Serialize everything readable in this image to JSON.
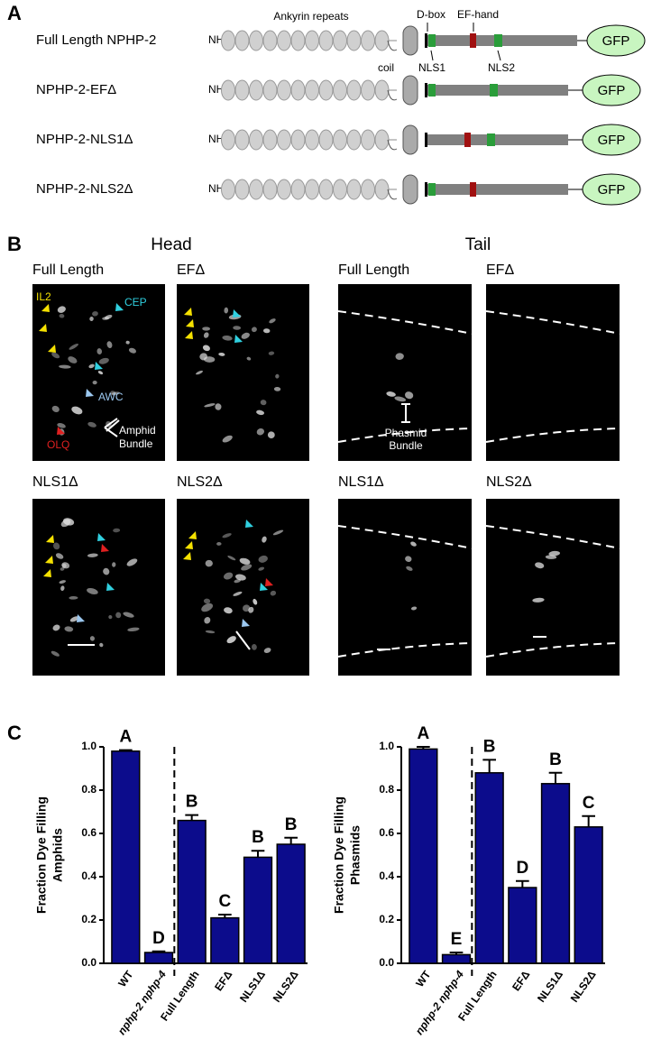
{
  "panel_a": {
    "label": "A",
    "ankyrin": "Ankyrin repeats",
    "dbox": "D-box",
    "efhand": "EF-hand",
    "coil": "coil",
    "nls1": "NLS1",
    "nls2": "NLS2",
    "constructs": [
      {
        "name": "Full Length NPHP-2",
        "nterm": "NH2",
        "tag": "GFP"
      },
      {
        "name": "NPHP-2-EFΔ",
        "nterm": "NH2",
        "tag": "GFP"
      },
      {
        "name": "NPHP-2-NLS1Δ",
        "nterm": "NH2",
        "tag": "GFP"
      },
      {
        "name": "NPHP-2-NLS2Δ",
        "nterm": "NH2",
        "tag": "GFP"
      }
    ]
  },
  "panel_b": {
    "label": "B",
    "head": {
      "title": "Head",
      "images": [
        "Full Length",
        "EFΔ",
        "NLS1Δ",
        "NLS2Δ"
      ]
    },
    "tail": {
      "title": "Tail",
      "images": [
        "Full Length",
        "EFΔ",
        "NLS1Δ",
        "NLS2Δ"
      ]
    },
    "annotations": {
      "il2": "IL2",
      "cep": "CEP",
      "awc": "AWC",
      "olq": "OLQ",
      "amphid": [
        "Amphid",
        "Bundle"
      ],
      "phasmid": [
        "Phasmid",
        "Bundle"
      ]
    },
    "scale": "5 µm"
  },
  "panel_c": {
    "label": "C"
  },
  "chart_data": [
    {
      "type": "bar",
      "ylabel": [
        "Fraction Dye Filling",
        "Amphids"
      ],
      "color": "#0c0c8c",
      "categories": [
        "WT",
        "nphp-2 nphp-4",
        "Full Length",
        "EFΔ",
        "NLS1Δ",
        "NLS2Δ"
      ],
      "values": [
        0.98,
        0.05,
        0.66,
        0.21,
        0.49,
        0.55
      ],
      "errors": [
        0.005,
        0.005,
        0.025,
        0.015,
        0.03,
        0.03
      ],
      "annotations": [
        "A",
        "D",
        "B",
        "C",
        "B",
        "B"
      ],
      "ylim": [
        0,
        1.0
      ],
      "yticks": [
        {
          "value": 0,
          "label": "0.0"
        },
        {
          "value": 0.2,
          "label": "0.2"
        },
        {
          "value": 0.4,
          "label": "0.4"
        },
        {
          "value": 0.6,
          "label": "0.6"
        },
        {
          "value": 0.8,
          "label": "0.8"
        },
        {
          "value": 1.0,
          "label": "1.0"
        }
      ]
    },
    {
      "type": "bar",
      "ylabel": [
        "Fraction Dye Filling",
        "Phasmids"
      ],
      "color": "#0c0c8c",
      "categories": [
        "WT",
        "nphp-2 nphp-4",
        "Full Length",
        "EFΔ",
        "NLS1Δ",
        "NLS2Δ"
      ],
      "values": [
        0.99,
        0.04,
        0.88,
        0.35,
        0.83,
        0.63
      ],
      "errors": [
        0.01,
        0.01,
        0.06,
        0.03,
        0.05,
        0.05
      ],
      "annotations": [
        "A",
        "E",
        "B",
        "D",
        "B",
        "C"
      ],
      "ylim": [
        0,
        1.0
      ],
      "yticks": [
        {
          "value": 0,
          "label": "0.0"
        },
        {
          "value": 0.2,
          "label": "0.2"
        },
        {
          "value": 0.4,
          "label": "0.4"
        },
        {
          "value": 0.6,
          "label": "0.6"
        },
        {
          "value": 0.8,
          "label": "0.8"
        },
        {
          "value": 1.0,
          "label": "1.0"
        }
      ]
    }
  ]
}
